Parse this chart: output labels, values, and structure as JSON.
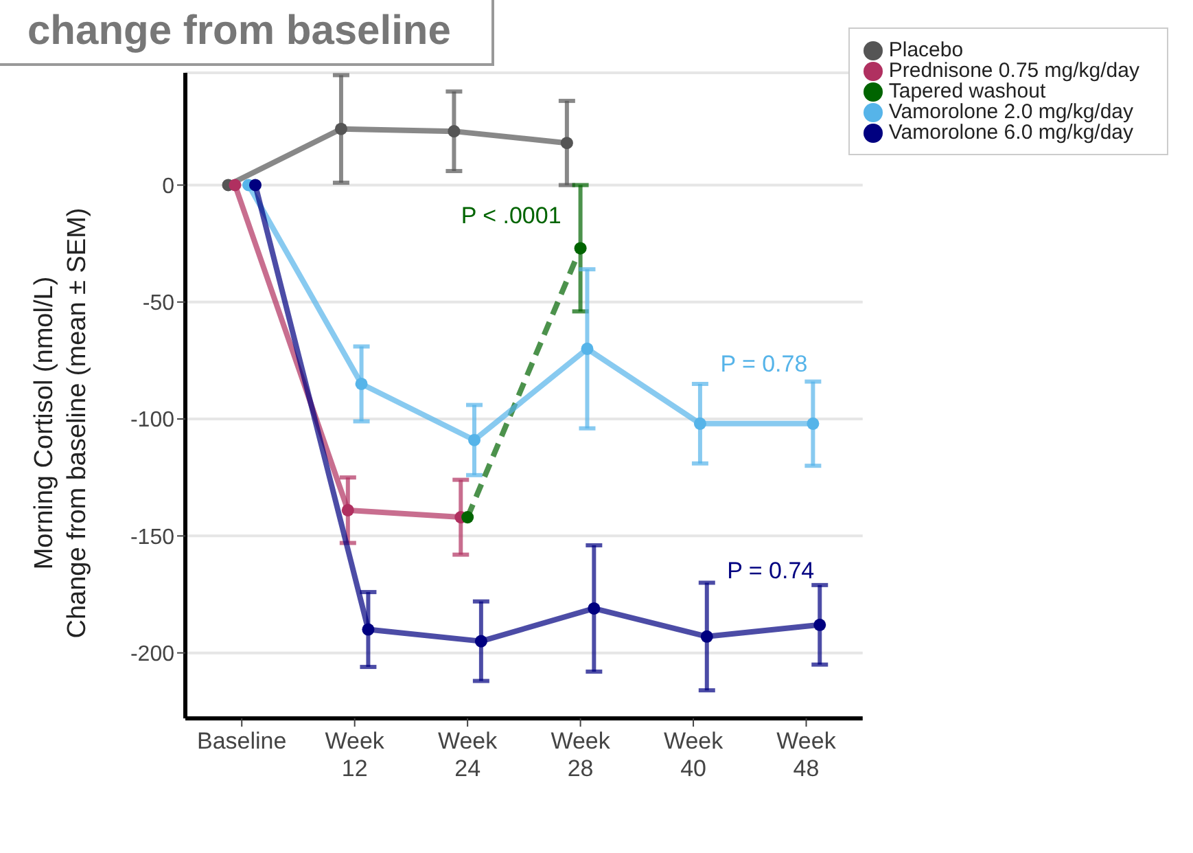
{
  "chart_data": {
    "type": "line",
    "title": "change from baseline",
    "ylabel": "Morning Cortisol (nmol/L)\nChange from baseline (mean ± SEM)",
    "categories": [
      "Baseline",
      "Week 12",
      "Week 24",
      "Week 28",
      "Week 40",
      "Week 48"
    ],
    "ylim": [
      -228,
      48
    ],
    "yticks": [
      -200,
      -150,
      -100,
      -50,
      0
    ],
    "grid": "y",
    "legend": "top right",
    "marker": "circle",
    "series": [
      {
        "name": "Placebo",
        "color": "#555555",
        "values": [
          0,
          24,
          23,
          18,
          null,
          null
        ],
        "errors": [
          null,
          23,
          17,
          18,
          null,
          null
        ]
      },
      {
        "name": "Prednisone 0.75 mg/kg/day",
        "color": "#b03060",
        "values": [
          0,
          -139,
          -142,
          null,
          null,
          null
        ],
        "errors": [
          null,
          14,
          16,
          null,
          null,
          null
        ]
      },
      {
        "name": "Tapered washout",
        "color": "#006400",
        "values": [
          null,
          null,
          -142,
          -27,
          null,
          null
        ],
        "errors": [
          null,
          null,
          null,
          27,
          null,
          null
        ],
        "line_style": "dashed"
      },
      {
        "name": "Vamorolone 2.0 mg/kg/day",
        "color": "#56b4e9",
        "values": [
          0,
          -85,
          -109,
          -70,
          -102,
          -102
        ],
        "errors": [
          null,
          16,
          15,
          34,
          17,
          18
        ]
      },
      {
        "name": "Vamorolone 6.0 mg/kg/day",
        "color": "#000080",
        "values": [
          0,
          -190,
          -195,
          -181,
          -193,
          -188
        ],
        "errors": [
          null,
          16,
          17,
          27,
          23,
          17
        ]
      }
    ],
    "annotations": [
      "P < .0001",
      "P = 0.78",
      "P = 0.74"
    ]
  }
}
